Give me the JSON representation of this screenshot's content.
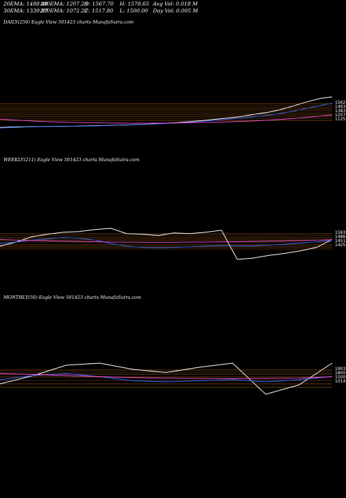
{
  "stats": {
    "row1": [
      "20EMA: 1488.48",
      "100EMA: 1207.28",
      "O: 1567.70",
      "H: 1578.65",
      "Avg Vol: 0.018 M"
    ],
    "row2": [
      "30EMA: 1339.87",
      "200EMA: 1072.22",
      "C: 1517.80",
      "L: 1500.00",
      "Day Vol: 0.005 M"
    ]
  },
  "panels": {
    "daily": {
      "label": "DAILY(250) Eagle  View  501423 charts MunafaSutra.com"
    },
    "weekly": {
      "label": "WEEKLY(211) Eagle  View  501423 charts MunafaSutra.com"
    },
    "monthly": {
      "label": "MONTHLY(50) Eagle  View  501423 charts MunafaSutra.com"
    }
  },
  "colors": {
    "price": "#ffffff",
    "ema_blue": "#3a6bff",
    "ema_pink": "#ff4fd8",
    "support_orange": "#ff8c1a",
    "bg": "#000000"
  },
  "chart_data": [
    {
      "type": "line",
      "name": "daily",
      "x": [
        0,
        10,
        20,
        30,
        40,
        50,
        60,
        70,
        80,
        90,
        100,
        110,
        120,
        130,
        140,
        150,
        160,
        170,
        180,
        190,
        200,
        210,
        220,
        230,
        240,
        249
      ],
      "series": [
        {
          "color": "white",
          "values": [
            1190,
            1195,
            1198,
            1200,
            1202,
            1203,
            1206,
            1210,
            1212,
            1215,
            1220,
            1226,
            1232,
            1240,
            1250,
            1262,
            1275,
            1290,
            1305,
            1330,
            1350,
            1380,
            1420,
            1465,
            1500,
            1518
          ]
        },
        {
          "color": "blue",
          "values": [
            1185,
            1190,
            1195,
            1198,
            1200,
            1202,
            1204,
            1207,
            1210,
            1214,
            1218,
            1224,
            1230,
            1237,
            1245,
            1255,
            1266,
            1278,
            1290,
            1305,
            1320,
            1340,
            1365,
            1395,
            1425,
            1450
          ]
        },
        {
          "color": "pink",
          "values": [
            1280,
            1270,
            1262,
            1255,
            1250,
            1246,
            1242,
            1240,
            1238,
            1237,
            1236,
            1236,
            1237,
            1238,
            1240,
            1243,
            1246,
            1250,
            1255,
            1260,
            1268,
            1276,
            1286,
            1298,
            1312,
            1325
          ]
        }
      ],
      "ticks": [
        "1562",
        "1493",
        "1383",
        "1257",
        "1125"
      ]
    },
    {
      "type": "line",
      "name": "weekly",
      "x": [
        0,
        10,
        20,
        30,
        40,
        50,
        60,
        70,
        80,
        90,
        100,
        110,
        120,
        130,
        140,
        150,
        160,
        170,
        180,
        190,
        200,
        210
      ],
      "series": [
        {
          "color": "white",
          "values": [
            900,
            960,
            1040,
            1080,
            1110,
            1120,
            1150,
            1170,
            1090,
            1080,
            1060,
            1100,
            1090,
            1110,
            1140,
            700,
            720,
            760,
            790,
            830,
            880,
            1000
          ]
        },
        {
          "color": "blue",
          "values": [
            940,
            960,
            990,
            1010,
            1030,
            1020,
            990,
            940,
            900,
            880,
            875,
            880,
            890,
            900,
            910,
            905,
            905,
            915,
            930,
            945,
            965,
            990
          ]
        },
        {
          "color": "pink",
          "values": [
            1000,
            990,
            985,
            980,
            975,
            970,
            965,
            962,
            960,
            958,
            957,
            958,
            960,
            962,
            965,
            967,
            970,
            975,
            980,
            985,
            990,
            998
          ]
        }
      ],
      "ticks": [
        "1593",
        "1486",
        "1451",
        "1425"
      ]
    },
    {
      "type": "line",
      "name": "monthly",
      "x": [
        0,
        5,
        10,
        15,
        20,
        25,
        30,
        35,
        40,
        45,
        50
      ],
      "series": [
        {
          "color": "white",
          "values": [
            800,
            880,
            980,
            1000,
            940,
            910,
            960,
            1000,
            700,
            790,
            1000
          ]
        },
        {
          "color": "blue",
          "values": [
            840,
            880,
            900,
            870,
            830,
            820,
            830,
            840,
            820,
            840,
            870
          ]
        },
        {
          "color": "pink",
          "values": [
            900,
            890,
            880,
            870,
            860,
            855,
            852,
            850,
            852,
            855,
            870
          ]
        }
      ],
      "ticks": [
        "1903",
        "1800",
        "1500",
        "1014"
      ]
    }
  ]
}
